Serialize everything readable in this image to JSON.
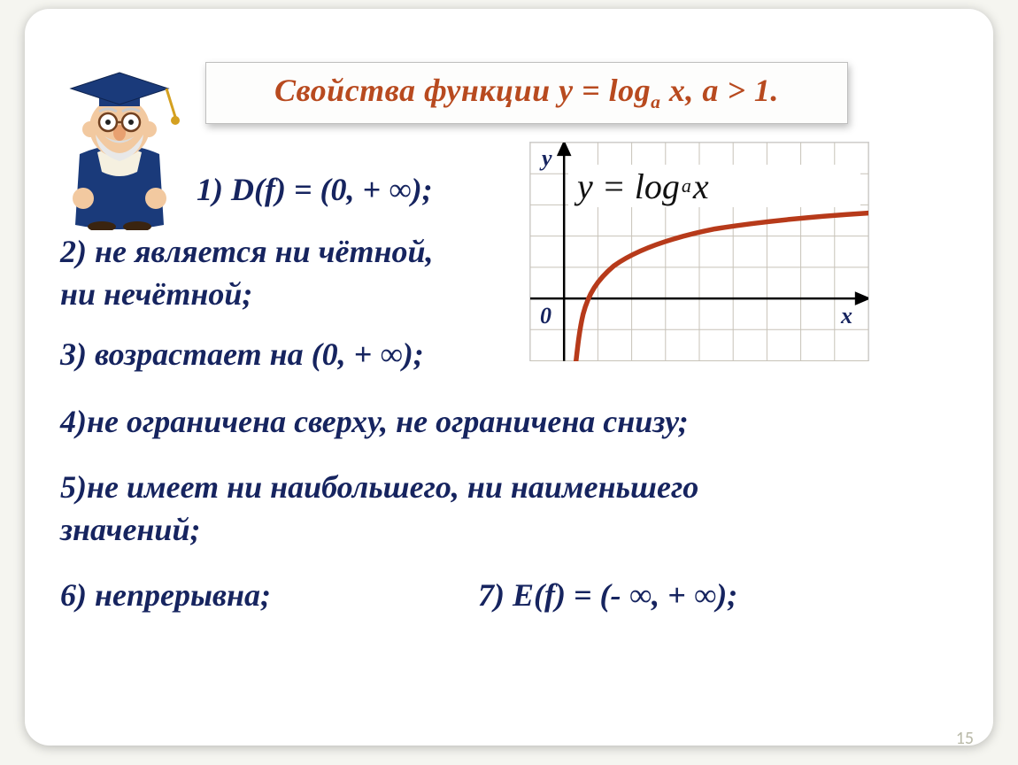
{
  "title": {
    "html": "Свойства функции y = log<span class='sub'>a</span> x, a &gt; 1.",
    "color": "#b84a1f"
  },
  "formula": {
    "html": "y = log<span class='sub'>a</span> x",
    "color": "#111111"
  },
  "axes": {
    "y_label": "y",
    "x_label": "x",
    "origin_label": "0",
    "label_color": "#16245f"
  },
  "properties": {
    "p1": "1) D(f) = (0, + ∞);",
    "p2_line1": "2) не является ни чётной,",
    "p2_line2": " ни нечётной;",
    "p3": "3) возрастает на (0, + ∞);",
    "p4": "4)не ограничена сверху, не ограничена снизу;",
    "p5_line1": "5)не имеет ни наибольшего, ни наименьшего",
    "p5_line2": " значений;",
    "p6": "6) непрерывна;",
    "p7": "7) E(f) = (- ∞, + ∞);"
  },
  "colors": {
    "text_main": "#16245f",
    "curve": "#b73a1a",
    "grid": "#c7c2b8",
    "axis": "#000000",
    "frame_bg": "#ffffff",
    "page_bg": "#f5f5f0"
  },
  "chart": {
    "type": "line",
    "xlim": [
      -1,
      9
    ],
    "ylim": [
      -3,
      4
    ],
    "grid_step": 1,
    "curve_points": "data from y=log_a(x), a>1, starting near x≈0.3 going to x≈9",
    "curve_width": 5,
    "background_color": "#ffffff"
  },
  "page_number": "15",
  "layout": {
    "slide_width": 1150,
    "slide_height": 864,
    "title_fontsize": 36,
    "prop_fontsize": 36,
    "font_family": "Georgia / Times italic"
  }
}
